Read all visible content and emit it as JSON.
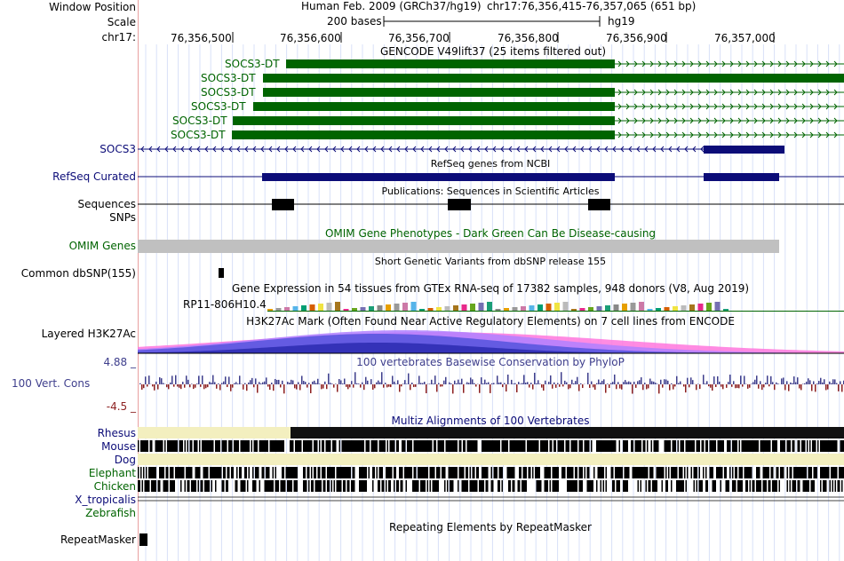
{
  "header": {
    "window_position_label": "Window Position",
    "scale_label": "Scale",
    "chrom_label": "chr17:",
    "assembly": "Human Feb. 2009 (GRCh37/hg19)",
    "position": "chr17:76,356,415-76,357,065 (651 bp)",
    "scale_text": "200 bases",
    "scale_db": "hg19",
    "ruler_ticks": [
      "76,356,500",
      "76,356,600",
      "76,356,700",
      "76,356,800",
      "76,356,900",
      "76,357,000"
    ]
  },
  "gencode": {
    "title": "GENCODE V49lift37 (25 items filtered out)",
    "genes": [
      "SOCS3-DT",
      "SOCS3-DT",
      "SOCS3-DT",
      "SOCS3-DT",
      "SOCS3-DT",
      "SOCS3-DT",
      "SOCS3"
    ],
    "color_dt": "#006400",
    "color_socs3": "#0c0c78"
  },
  "refseq": {
    "label": "RefSeq Curated",
    "title": "RefSeq genes from NCBI",
    "color": "#0c0c78"
  },
  "publications": {
    "title": "Publications: Sequences in Scientific Articles",
    "label_1": "Sequences",
    "label_2": "SNPs"
  },
  "omim": {
    "label": "OMIM Genes",
    "title": "OMIM Gene Phenotypes - Dark Green Can Be Disease-causing",
    "color": "#006400"
  },
  "dbsnp": {
    "label": "Common dbSNP(155)",
    "title": "Short Genetic Variants from dbSNP release 155"
  },
  "gtex": {
    "title": "Gene Expression in 54 tissues from GTEx RNA-seq of 17382 samples, 948 donors (V8, Aug 2019)",
    "gene": "RP11-806H10.4"
  },
  "h3k27ac": {
    "label": "Layered H3K27Ac",
    "title": "H3K27Ac Mark (Often Found Near Active Regulatory Elements) on 7 cell lines from ENCODE"
  },
  "conservation": {
    "label": "100 Vert. Cons",
    "title": "100 vertebrates Basewise Conservation by PhyloP",
    "max": "4.88 _",
    "min": "-4.5 _",
    "color": "#3e3e8c"
  },
  "multiz": {
    "title": "Multiz Alignments of 100 Vertebrates",
    "species": [
      "Rhesus",
      "Mouse",
      "Dog",
      "Elephant",
      "Chicken",
      "X_tropicalis",
      "Zebrafish"
    ]
  },
  "repeatmasker": {
    "label": "RepeatMasker",
    "title": "Repeating Elements by RepeatMasker"
  }
}
